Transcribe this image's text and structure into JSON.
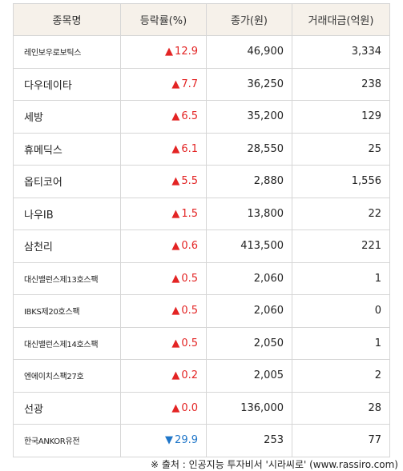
{
  "table": {
    "headers": [
      "종목명",
      "등락률(%)",
      "종가(원)",
      "거래대금(억원)"
    ],
    "rows": [
      {
        "name": "레인보우로보틱스",
        "small": true,
        "direction": "up",
        "arrow": "▲",
        "rate": "12.9",
        "close": "46,900",
        "amount": "3,334"
      },
      {
        "name": "다우데이타",
        "small": false,
        "direction": "up",
        "arrow": "▲",
        "rate": "7.7",
        "close": "36,250",
        "amount": "238"
      },
      {
        "name": "세방",
        "small": false,
        "direction": "up",
        "arrow": "▲",
        "rate": "6.5",
        "close": "35,200",
        "amount": "129"
      },
      {
        "name": "휴메딕스",
        "small": false,
        "direction": "up",
        "arrow": "▲",
        "rate": "6.1",
        "close": "28,550",
        "amount": "25"
      },
      {
        "name": "옵티코어",
        "small": false,
        "direction": "up",
        "arrow": "▲",
        "rate": "5.5",
        "close": "2,880",
        "amount": "1,556"
      },
      {
        "name": "나우IB",
        "small": false,
        "direction": "up",
        "arrow": "▲",
        "rate": "1.5",
        "close": "13,800",
        "amount": "22"
      },
      {
        "name": "삼천리",
        "small": false,
        "direction": "up",
        "arrow": "▲",
        "rate": "0.6",
        "close": "413,500",
        "amount": "221"
      },
      {
        "name": "대신밸런스제13호스팩",
        "small": true,
        "direction": "up",
        "arrow": "▲",
        "rate": "0.5",
        "close": "2,060",
        "amount": "1"
      },
      {
        "name": "IBKS제20호스팩",
        "small": true,
        "direction": "up",
        "arrow": "▲",
        "rate": "0.5",
        "close": "2,060",
        "amount": "0"
      },
      {
        "name": "대신밸런스제14호스팩",
        "small": true,
        "direction": "up",
        "arrow": "▲",
        "rate": "0.5",
        "close": "2,050",
        "amount": "1"
      },
      {
        "name": "엔에이치스팩27호",
        "small": true,
        "direction": "up",
        "arrow": "▲",
        "rate": "0.2",
        "close": "2,005",
        "amount": "2"
      },
      {
        "name": "선광",
        "small": false,
        "direction": "up",
        "arrow": "▲",
        "rate": "0.0",
        "close": "136,000",
        "amount": "28"
      },
      {
        "name": "한국ANKOR유전",
        "small": true,
        "direction": "down",
        "arrow": "▼",
        "rate": "29.9",
        "close": "253",
        "amount": "77"
      }
    ]
  },
  "footer": {
    "source": "※ 출처 : 인공지능 투자비서 '시라씨로' (www.rassiro.com)"
  },
  "colors": {
    "up": "#e32424",
    "down": "#1f76c9",
    "header_bg": "#f6f1ea",
    "border": "#d6d6d6"
  }
}
